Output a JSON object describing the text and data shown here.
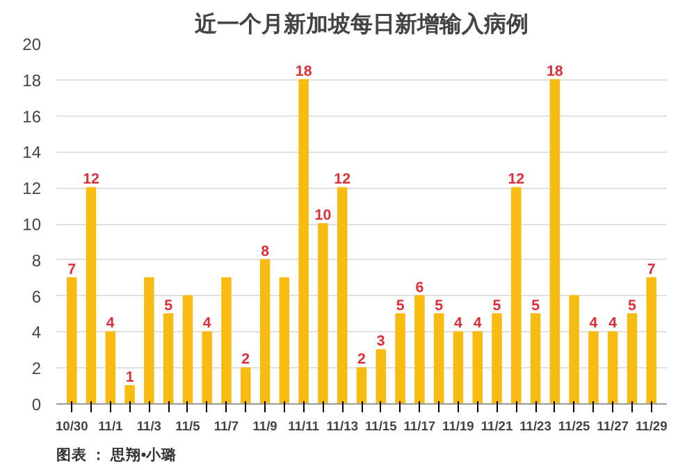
{
  "chart_data": {
    "type": "bar",
    "title": "近一个月新加坡每日新增输入病例",
    "categories": [
      "10/30",
      null,
      "11/1",
      null,
      "11/3",
      null,
      "11/5",
      null,
      "11/7",
      null,
      "11/9",
      null,
      "11/11",
      null,
      "11/13",
      null,
      "11/15",
      null,
      "11/17",
      null,
      "11/19",
      null,
      "11/21",
      null,
      "11/23",
      null,
      "11/25",
      null,
      "11/27",
      null,
      "11/29"
    ],
    "values": [
      7,
      12,
      4,
      1,
      7,
      5,
      6,
      4,
      7,
      2,
      8,
      7,
      18,
      10,
      12,
      2,
      3,
      5,
      6,
      5,
      4,
      4,
      5,
      12,
      5,
      18,
      6,
      4,
      4,
      5,
      7
    ],
    "value_labels": [
      "7",
      "12",
      "4",
      "1",
      null,
      "5",
      null,
      "4",
      null,
      "2",
      "8",
      null,
      "18",
      "10",
      "12",
      "2",
      "3",
      "5",
      "6",
      "5",
      "4",
      "4",
      "5",
      "12",
      "5",
      "18",
      null,
      "4",
      "4",
      "5",
      "7"
    ],
    "color": "#f7bb12",
    "ylim": [
      0,
      20
    ],
    "yticks": [
      0,
      2,
      4,
      6,
      8,
      10,
      12,
      14,
      16,
      18,
      20
    ],
    "grid": "y",
    "annotations": [
      "图表 ： 思翔•小璐"
    ]
  }
}
